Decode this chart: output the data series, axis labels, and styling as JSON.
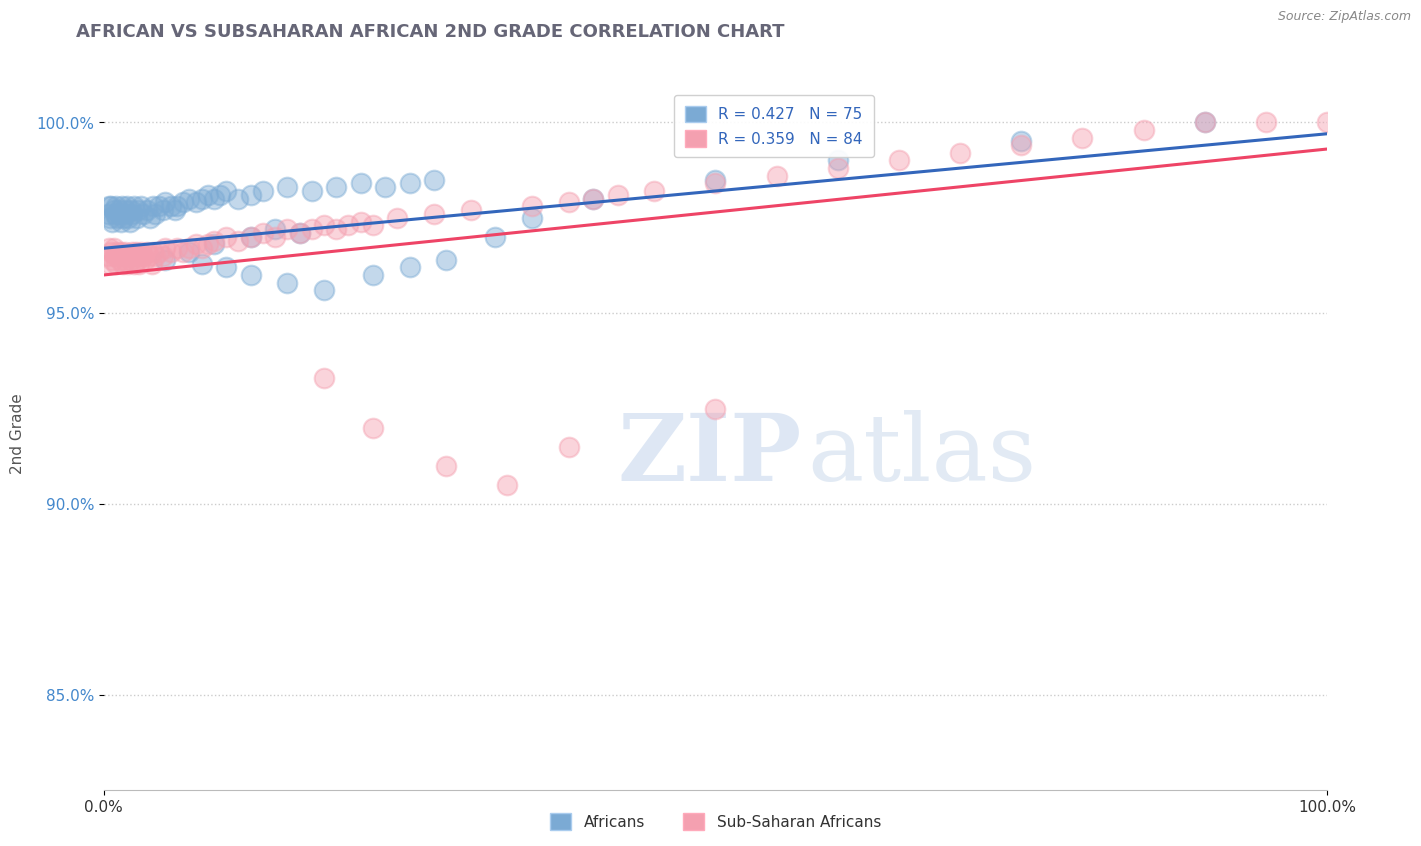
{
  "title": "AFRICAN VS SUBSAHARAN AFRICAN 2ND GRADE CORRELATION CHART",
  "source_text": "Source: ZipAtlas.com",
  "ylabel": "2nd Grade",
  "ytick_labels": [
    "85.0%",
    "90.0%",
    "95.0%",
    "100.0%"
  ],
  "ytick_values": [
    0.85,
    0.9,
    0.95,
    1.0
  ],
  "xrange": [
    0.0,
    1.0
  ],
  "yrange": [
    0.825,
    1.012
  ],
  "legend_africans": "Africans",
  "legend_subsaharan": "Sub-Saharan Africans",
  "R_africans": 0.427,
  "N_africans": 75,
  "R_subsaharan": 0.359,
  "N_subsaharan": 84,
  "color_africans": "#7BAAD4",
  "color_subsaharan": "#F4A0B0",
  "line_color_africans": "#3366BB",
  "line_color_subsaharan": "#EE4466",
  "africans_x": [
    0.003,
    0.004,
    0.005,
    0.006,
    0.007,
    0.008,
    0.009,
    0.01,
    0.011,
    0.012,
    0.013,
    0.014,
    0.015,
    0.016,
    0.017,
    0.018,
    0.019,
    0.02,
    0.021,
    0.022,
    0.023,
    0.025,
    0.027,
    0.028,
    0.03,
    0.032,
    0.035,
    0.038,
    0.04,
    0.042,
    0.045,
    0.048,
    0.05,
    0.055,
    0.058,
    0.06,
    0.065,
    0.07,
    0.075,
    0.08,
    0.085,
    0.09,
    0.095,
    0.1,
    0.11,
    0.12,
    0.13,
    0.15,
    0.17,
    0.19,
    0.21,
    0.23,
    0.25,
    0.27,
    0.12,
    0.14,
    0.16,
    0.09,
    0.07,
    0.05,
    0.08,
    0.1,
    0.12,
    0.15,
    0.18,
    0.22,
    0.25,
    0.28,
    0.32,
    0.35,
    0.4,
    0.5,
    0.6,
    0.75,
    0.9
  ],
  "africans_y": [
    0.976,
    0.978,
    0.975,
    0.978,
    0.974,
    0.977,
    0.976,
    0.978,
    0.975,
    0.977,
    0.976,
    0.974,
    0.978,
    0.975,
    0.977,
    0.976,
    0.978,
    0.975,
    0.974,
    0.977,
    0.976,
    0.978,
    0.975,
    0.977,
    0.978,
    0.976,
    0.977,
    0.975,
    0.978,
    0.976,
    0.978,
    0.977,
    0.979,
    0.978,
    0.977,
    0.978,
    0.979,
    0.98,
    0.979,
    0.98,
    0.981,
    0.98,
    0.981,
    0.982,
    0.98,
    0.981,
    0.982,
    0.983,
    0.982,
    0.983,
    0.984,
    0.983,
    0.984,
    0.985,
    0.97,
    0.972,
    0.971,
    0.968,
    0.966,
    0.964,
    0.963,
    0.962,
    0.96,
    0.958,
    0.956,
    0.96,
    0.962,
    0.964,
    0.97,
    0.975,
    0.98,
    0.985,
    0.99,
    0.995,
    1.0
  ],
  "subsaharan_x": [
    0.003,
    0.004,
    0.005,
    0.006,
    0.007,
    0.008,
    0.009,
    0.01,
    0.011,
    0.012,
    0.013,
    0.014,
    0.015,
    0.016,
    0.017,
    0.018,
    0.019,
    0.02,
    0.021,
    0.022,
    0.023,
    0.024,
    0.025,
    0.026,
    0.027,
    0.028,
    0.029,
    0.03,
    0.032,
    0.034,
    0.035,
    0.037,
    0.039,
    0.04,
    0.042,
    0.045,
    0.048,
    0.05,
    0.055,
    0.06,
    0.065,
    0.07,
    0.075,
    0.08,
    0.085,
    0.09,
    0.1,
    0.11,
    0.12,
    0.13,
    0.14,
    0.15,
    0.16,
    0.17,
    0.18,
    0.19,
    0.2,
    0.21,
    0.22,
    0.24,
    0.27,
    0.3,
    0.35,
    0.38,
    0.4,
    0.42,
    0.45,
    0.5,
    0.55,
    0.6,
    0.65,
    0.7,
    0.75,
    0.8,
    0.85,
    0.9,
    0.95,
    1.0,
    0.18,
    0.22,
    0.28,
    0.33,
    0.38,
    0.5
  ],
  "subsaharan_y": [
    0.965,
    0.967,
    0.963,
    0.966,
    0.964,
    0.967,
    0.965,
    0.963,
    0.966,
    0.965,
    0.964,
    0.966,
    0.965,
    0.963,
    0.966,
    0.964,
    0.965,
    0.963,
    0.965,
    0.964,
    0.966,
    0.965,
    0.963,
    0.966,
    0.964,
    0.965,
    0.963,
    0.966,
    0.965,
    0.964,
    0.966,
    0.965,
    0.963,
    0.966,
    0.965,
    0.966,
    0.965,
    0.967,
    0.966,
    0.967,
    0.966,
    0.967,
    0.968,
    0.967,
    0.968,
    0.969,
    0.97,
    0.969,
    0.97,
    0.971,
    0.97,
    0.972,
    0.971,
    0.972,
    0.973,
    0.972,
    0.973,
    0.974,
    0.973,
    0.975,
    0.976,
    0.977,
    0.978,
    0.979,
    0.98,
    0.981,
    0.982,
    0.984,
    0.986,
    0.988,
    0.99,
    0.992,
    0.994,
    0.996,
    0.998,
    1.0,
    1.0,
    1.0,
    0.933,
    0.92,
    0.91,
    0.905,
    0.915,
    0.925
  ],
  "watermark_zip": "ZIP",
  "watermark_atlas": "atlas",
  "background_color": "#FFFFFF",
  "grid_color": "#CCCCCC",
  "title_color": "#666677",
  "axis_color": "#AAAAAA"
}
